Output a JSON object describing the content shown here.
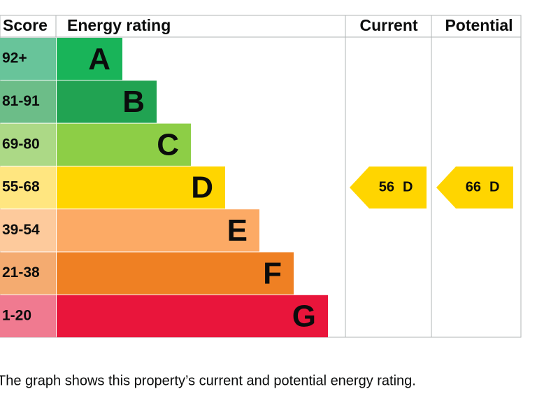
{
  "header": {
    "score": "Score",
    "rating": "Energy rating",
    "current": "Current",
    "potential": "Potential"
  },
  "bands": [
    {
      "score": "92+",
      "letter": "A",
      "color": "#19b459",
      "score_color": "#68c49a"
    },
    {
      "score": "81-91",
      "letter": "B",
      "color": "#21a352",
      "score_color": "#6cbd88"
    },
    {
      "score": "69-80",
      "letter": "C",
      "color": "#8dce46",
      "score_color": "#acd986"
    },
    {
      "score": "55-68",
      "letter": "D",
      "color": "#ffd500",
      "score_color": "#ffe680"
    },
    {
      "score": "39-54",
      "letter": "E",
      "color": "#fcaa65",
      "score_color": "#fdca9c"
    },
    {
      "score": "21-38",
      "letter": "F",
      "color": "#ef8023",
      "score_color": "#f4ab70"
    },
    {
      "score": "1-20",
      "letter": "G",
      "color": "#e9153b",
      "score_color": "#f07a90"
    }
  ],
  "current": {
    "score": 56,
    "band": "D"
  },
  "potential": {
    "score": 66,
    "band": "D"
  },
  "caption": "The graph shows this property’s current and potential energy rating."
}
